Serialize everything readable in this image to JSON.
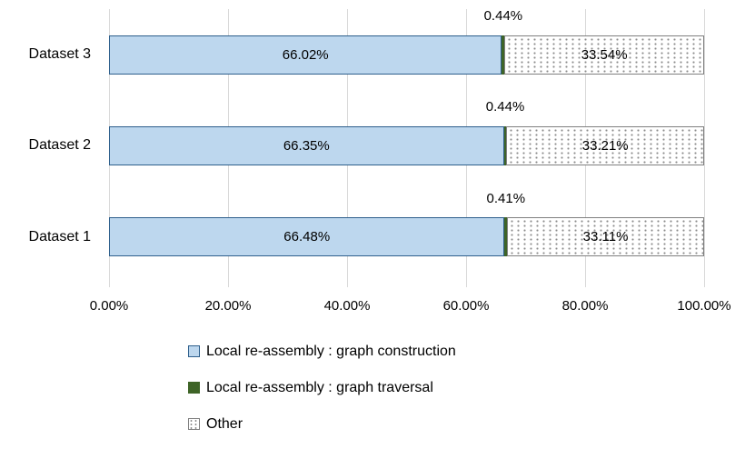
{
  "chart_data": {
    "type": "bar",
    "orientation": "horizontal",
    "stacked": true,
    "title": "",
    "xlabel": "",
    "ylabel": "",
    "categories": [
      "Dataset 3",
      "Dataset 2",
      "Dataset 1"
    ],
    "series": [
      {
        "name": "Local re-assembly : graph construction",
        "values": [
          66.02,
          66.35,
          66.48
        ],
        "display_values": [
          "66.02%",
          "66.35%",
          "66.48%"
        ],
        "label_position": "inside",
        "pattern": "solid"
      },
      {
        "name": "Local re-assembly : graph traversal",
        "values": [
          0.44,
          0.44,
          0.41
        ],
        "display_values": [
          "0.44%",
          "0.44%",
          "0.41%"
        ],
        "label_position": "above",
        "pattern": "solid"
      },
      {
        "name": "Other",
        "values": [
          33.54,
          33.21,
          33.11
        ],
        "display_values": [
          "33.54%",
          "33.21%",
          "33.11%"
        ],
        "label_position": "inside",
        "pattern": "dots"
      }
    ],
    "x_ticks": [
      "0.00%",
      "20.00%",
      "40.00%",
      "60.00%",
      "80.00%",
      "100.00%"
    ],
    "x_tick_values": [
      0,
      20,
      40,
      60,
      80,
      100
    ],
    "xlim": [
      0,
      100
    ],
    "grid": "vertical-only",
    "legend_position": "bottom-left"
  },
  "colors": {
    "construction_fill": "#BDD7EE",
    "construction_border": "#2E5F8C",
    "traversal_fill": "#3E6427",
    "other_fill": "#FFFFFF",
    "other_border": "#7F7F7F",
    "other_dot": "#8C8C8C",
    "gridline": "#D9D9D9",
    "text": "#000000",
    "background": "#FFFFFF"
  }
}
